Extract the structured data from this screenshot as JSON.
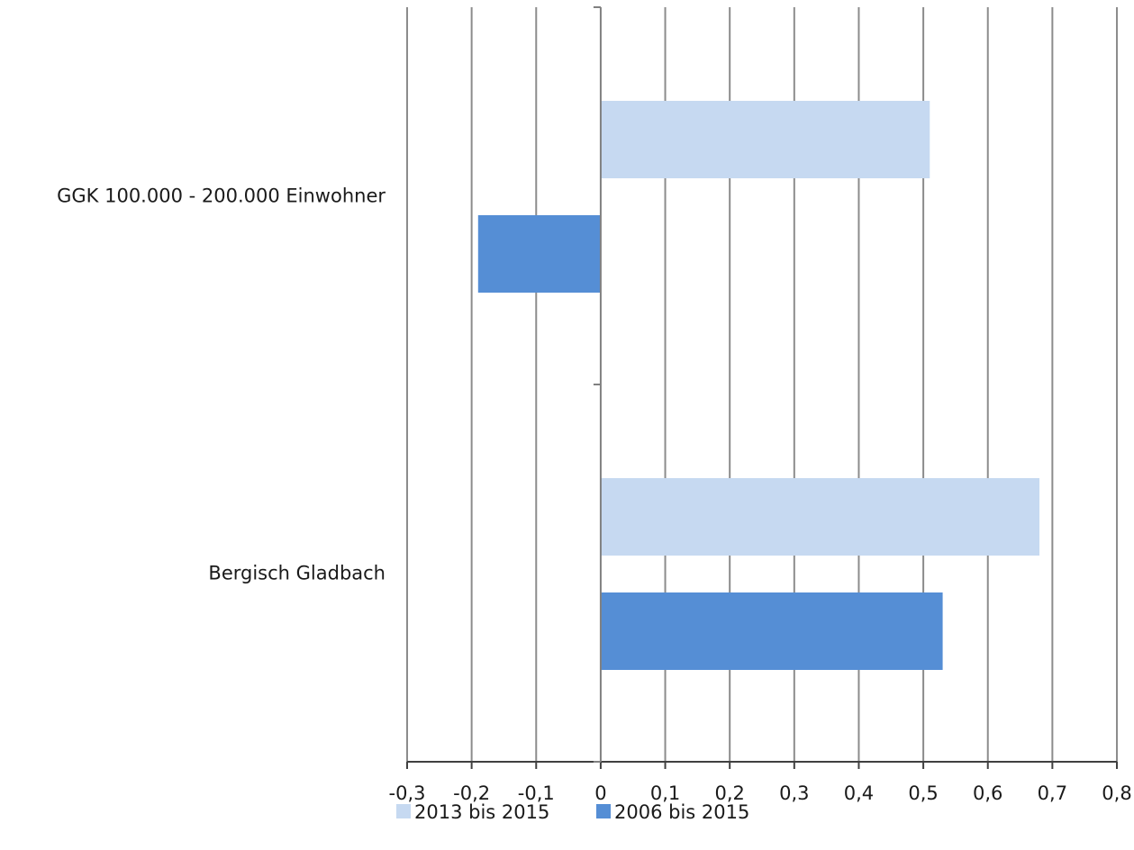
{
  "chart_data": {
    "type": "bar",
    "orientation": "horizontal",
    "categories": [
      "GGK 100.000 - 200.000 Einwohner",
      "Bergisch Gladbach"
    ],
    "series": [
      {
        "name": "2013 bis 2015",
        "values": [
          0.51,
          0.68
        ],
        "color": "#c6d9f1"
      },
      {
        "name": "2006 bis 2015",
        "values": [
          -0.19,
          0.53
        ],
        "color": "#558ed5"
      }
    ],
    "xlim": [
      -0.3,
      0.8
    ],
    "xticks": [
      -0.3,
      -0.2,
      -0.1,
      0,
      0.1,
      0.2,
      0.3,
      0.4,
      0.5,
      0.6,
      0.7,
      0.8
    ],
    "xtick_labels": [
      "-0,3",
      "-0,2",
      "-0,1",
      "0",
      "0,1",
      "0,2",
      "0,3",
      "0,4",
      "0,5",
      "0,6",
      "0,7",
      "0,8"
    ],
    "grid": true,
    "legend": "bottom",
    "title": "",
    "xlabel": "",
    "ylabel": ""
  }
}
